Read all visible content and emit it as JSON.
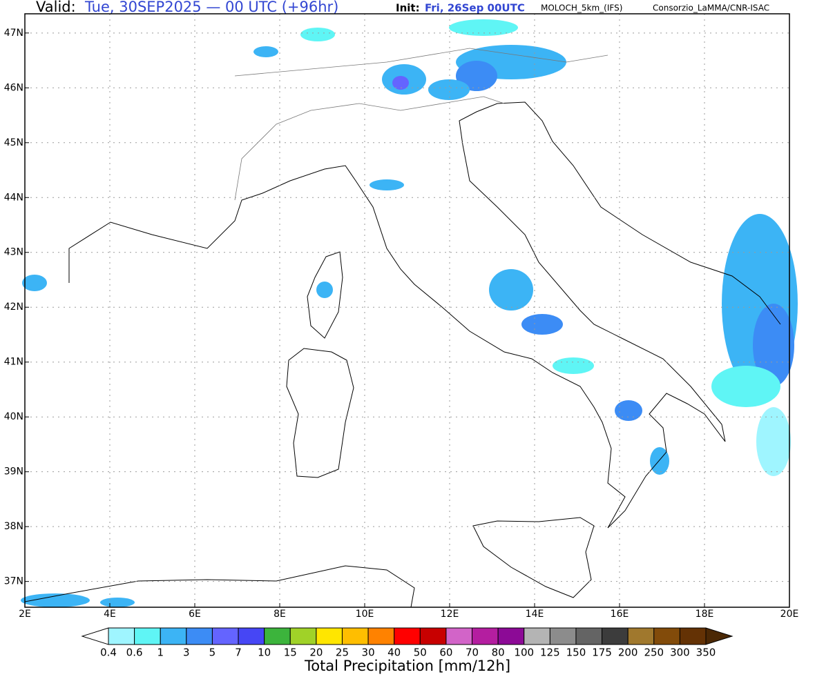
{
  "header": {
    "valid_label": "Valid:",
    "valid_time": "Tue, 30SEP2025 — 00 UTC (+96hr)",
    "init_label": "Init:",
    "init_time": "Fri, 26Sep 00UTC",
    "model": "MOLOCH_5km_(IFS)",
    "credit": "Consorzio_LaMMA/CNR-ISAC"
  },
  "map": {
    "xlim": [
      2,
      20
    ],
    "ylim": [
      36.53,
      47.35
    ],
    "xticks": [
      {
        "value": 2,
        "label": "2E"
      },
      {
        "value": 4,
        "label": "4E"
      },
      {
        "value": 6,
        "label": "6E"
      },
      {
        "value": 8,
        "label": "8E"
      },
      {
        "value": 10,
        "label": "10E"
      },
      {
        "value": 12,
        "label": "12E"
      },
      {
        "value": 14,
        "label": "14E"
      },
      {
        "value": 16,
        "label": "16E"
      },
      {
        "value": 18,
        "label": "18E"
      },
      {
        "value": 20,
        "label": "20E"
      }
    ],
    "yticks": [
      {
        "value": 37,
        "label": "37N"
      },
      {
        "value": 38,
        "label": "38N"
      },
      {
        "value": 39,
        "label": "39N"
      },
      {
        "value": 40,
        "label": "40N"
      },
      {
        "value": 41,
        "label": "41N"
      },
      {
        "value": 42,
        "label": "42N"
      },
      {
        "value": 43,
        "label": "43N"
      },
      {
        "value": 44,
        "label": "44N"
      },
      {
        "value": 45,
        "label": "45N"
      },
      {
        "value": 46,
        "label": "46N"
      },
      {
        "value": 47,
        "label": "47N"
      }
    ],
    "grid": true
  },
  "colorbar": {
    "title": "Total Precipitation [mm/12h]",
    "levels": [
      0.4,
      0.6,
      1,
      3,
      5,
      7,
      10,
      15,
      20,
      25,
      30,
      40,
      50,
      60,
      70,
      80,
      100,
      125,
      150,
      175,
      200,
      250,
      300,
      350
    ],
    "under_color": "#ffffff",
    "colors": [
      "#9ff5ff",
      "#5ff5f5",
      "#3cb4f5",
      "#3c8cf5",
      "#6464ff",
      "#4646f5",
      "#3cb43c",
      "#a0d228",
      "#ffe600",
      "#ffbe00",
      "#ff8200",
      "#ff0000",
      "#c80000",
      "#d264c8",
      "#b41ea0",
      "#8c0a96",
      "#b4b4b4",
      "#8c8c8c",
      "#646464",
      "#3c3c3c",
      "#a0782d",
      "#824b0a",
      "#643205"
    ],
    "over_color": "#4b2805"
  }
}
